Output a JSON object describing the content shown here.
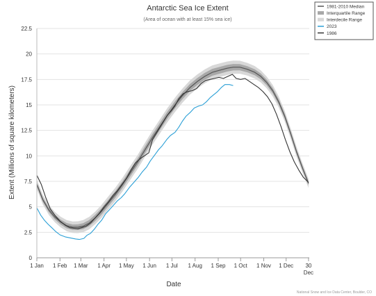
{
  "chart_data": {
    "type": "line",
    "title": "Antarctic Sea Ice Extent",
    "subtitle": "(Area of ocean with at least 15% sea ice)",
    "xlabel": "Date",
    "ylabel": "Extent (Millions of square kilometers)",
    "ylim": [
      0,
      22.5
    ],
    "xlim": [
      0,
      365
    ],
    "y_ticks": [
      "0",
      "2.5",
      "5",
      "7.5",
      "10",
      "12.5",
      "15",
      "17.5",
      "20",
      "22.5"
    ],
    "x_ticks": [
      {
        "day": 0,
        "label": "1 Jan"
      },
      {
        "day": 31,
        "label": "1 Feb"
      },
      {
        "day": 59,
        "label": "1 Mar"
      },
      {
        "day": 90,
        "label": "1 Apr"
      },
      {
        "day": 120,
        "label": "1 May"
      },
      {
        "day": 151,
        "label": "1 Jun"
      },
      {
        "day": 181,
        "label": "1 Jul"
      },
      {
        "day": 212,
        "label": "1 Aug"
      },
      {
        "day": 243,
        "label": "1 Sep"
      },
      {
        "day": 273,
        "label": "1 Oct"
      },
      {
        "day": 304,
        "label": "1 Nov"
      },
      {
        "day": 334,
        "label": "1 Dec"
      },
      {
        "day": 364,
        "label": "30",
        "label2": "Dec"
      }
    ],
    "grid": "horizontal",
    "legend_position": "top-right",
    "credit": "National Snow and Ice Data Center, Boulder, CO",
    "series": [
      {
        "name": "1981-2010 Median",
        "kind": "line",
        "color": "#555555",
        "points": [
          [
            0,
            7.2
          ],
          [
            8,
            5.7
          ],
          [
            16,
            4.7
          ],
          [
            24,
            4.0
          ],
          [
            32,
            3.5
          ],
          [
            40,
            3.15
          ],
          [
            48,
            3.0
          ],
          [
            55,
            3.0
          ],
          [
            62,
            3.1
          ],
          [
            70,
            3.4
          ],
          [
            78,
            3.9
          ],
          [
            86,
            4.5
          ],
          [
            95,
            5.3
          ],
          [
            105,
            6.2
          ],
          [
            115,
            7.2
          ],
          [
            125,
            8.3
          ],
          [
            135,
            9.4
          ],
          [
            145,
            10.6
          ],
          [
            155,
            11.8
          ],
          [
            165,
            12.9
          ],
          [
            175,
            14.0
          ],
          [
            185,
            15.0
          ],
          [
            195,
            15.9
          ],
          [
            205,
            16.7
          ],
          [
            215,
            17.3
          ],
          [
            225,
            17.8
          ],
          [
            235,
            18.2
          ],
          [
            245,
            18.4
          ],
          [
            255,
            18.6
          ],
          [
            263,
            18.7
          ],
          [
            272,
            18.7
          ],
          [
            282,
            18.5
          ],
          [
            292,
            18.2
          ],
          [
            300,
            17.8
          ],
          [
            308,
            17.2
          ],
          [
            316,
            16.4
          ],
          [
            324,
            15.3
          ],
          [
            332,
            13.9
          ],
          [
            340,
            12.2
          ],
          [
            348,
            10.4
          ],
          [
            356,
            8.8
          ],
          [
            364,
            7.3
          ]
        ]
      },
      {
        "name": "Interquartile Range",
        "kind": "band",
        "color": "#a8a8a8",
        "spread": [
          0.2,
          0.35
        ]
      },
      {
        "name": "Interdecile Range",
        "kind": "band",
        "color": "#d8d8d8",
        "spread": [
          0.45,
          0.7
        ]
      },
      {
        "name": "2023",
        "kind": "line",
        "color": "#2a9fd6",
        "points": [
          [
            0,
            4.9
          ],
          [
            5,
            4.2
          ],
          [
            10,
            3.7
          ],
          [
            15,
            3.3
          ],
          [
            20,
            2.95
          ],
          [
            25,
            2.6
          ],
          [
            31,
            2.25
          ],
          [
            38,
            2.05
          ],
          [
            45,
            1.95
          ],
          [
            52,
            1.85
          ],
          [
            57,
            1.8
          ],
          [
            63,
            1.9
          ],
          [
            67,
            2.2
          ],
          [
            72,
            2.4
          ],
          [
            77,
            2.8
          ],
          [
            82,
            3.3
          ],
          [
            87,
            3.7
          ],
          [
            92,
            4.3
          ],
          [
            97,
            4.7
          ],
          [
            102,
            5.1
          ],
          [
            108,
            5.6
          ],
          [
            113,
            5.9
          ],
          [
            118,
            6.3
          ],
          [
            124,
            6.9
          ],
          [
            130,
            7.4
          ],
          [
            136,
            7.9
          ],
          [
            141,
            8.4
          ],
          [
            147,
            8.9
          ],
          [
            152,
            9.5
          ],
          [
            158,
            10.1
          ],
          [
            163,
            10.6
          ],
          [
            168,
            11.0
          ],
          [
            174,
            11.6
          ],
          [
            179,
            12.0
          ],
          [
            185,
            12.3
          ],
          [
            190,
            12.8
          ],
          [
            195,
            13.4
          ],
          [
            200,
            13.9
          ],
          [
            206,
            14.3
          ],
          [
            211,
            14.7
          ],
          [
            217,
            14.9
          ],
          [
            222,
            15.0
          ],
          [
            227,
            15.3
          ],
          [
            232,
            15.7
          ],
          [
            237,
            16.0
          ],
          [
            242,
            16.3
          ],
          [
            247,
            16.7
          ],
          [
            252,
            17.0
          ],
          [
            258,
            17.0
          ],
          [
            263,
            16.9
          ]
        ]
      },
      {
        "name": "1986",
        "kind": "line",
        "color": "#333333",
        "points": [
          [
            0,
            8.1
          ],
          [
            6,
            7.2
          ],
          [
            12,
            5.9
          ],
          [
            18,
            4.8
          ],
          [
            25,
            4.1
          ],
          [
            31,
            3.6
          ],
          [
            38,
            3.2
          ],
          [
            44,
            2.95
          ],
          [
            50,
            2.9
          ],
          [
            55,
            2.85
          ],
          [
            60,
            2.95
          ],
          [
            66,
            3.1
          ],
          [
            72,
            3.4
          ],
          [
            78,
            3.9
          ],
          [
            84,
            4.4
          ],
          [
            90,
            5.0
          ],
          [
            96,
            5.5
          ],
          [
            102,
            6.1
          ],
          [
            108,
            6.6
          ],
          [
            114,
            7.2
          ],
          [
            120,
            7.8
          ],
          [
            126,
            8.6
          ],
          [
            132,
            9.3
          ],
          [
            138,
            9.7
          ],
          [
            144,
            10.0
          ],
          [
            150,
            10.3
          ],
          [
            155,
            11.6
          ],
          [
            160,
            12.2
          ],
          [
            165,
            12.8
          ],
          [
            170,
            13.4
          ],
          [
            175,
            14.0
          ],
          [
            180,
            14.4
          ],
          [
            185,
            14.9
          ],
          [
            190,
            15.6
          ],
          [
            196,
            16.1
          ],
          [
            202,
            16.3
          ],
          [
            208,
            16.4
          ],
          [
            214,
            16.6
          ],
          [
            220,
            17.1
          ],
          [
            226,
            17.4
          ],
          [
            232,
            17.5
          ],
          [
            238,
            17.6
          ],
          [
            244,
            17.7
          ],
          [
            250,
            17.6
          ],
          [
            256,
            17.8
          ],
          [
            262,
            18.0
          ],
          [
            267,
            17.6
          ],
          [
            273,
            17.5
          ],
          [
            279,
            17.6
          ],
          [
            285,
            17.3
          ],
          [
            291,
            17.0
          ],
          [
            297,
            16.7
          ],
          [
            303,
            16.3
          ],
          [
            309,
            15.8
          ],
          [
            315,
            15.1
          ],
          [
            321,
            14.1
          ],
          [
            327,
            12.9
          ],
          [
            333,
            11.6
          ],
          [
            339,
            10.4
          ],
          [
            345,
            9.4
          ],
          [
            351,
            8.6
          ],
          [
            357,
            7.9
          ],
          [
            364,
            7.4
          ]
        ]
      }
    ]
  }
}
